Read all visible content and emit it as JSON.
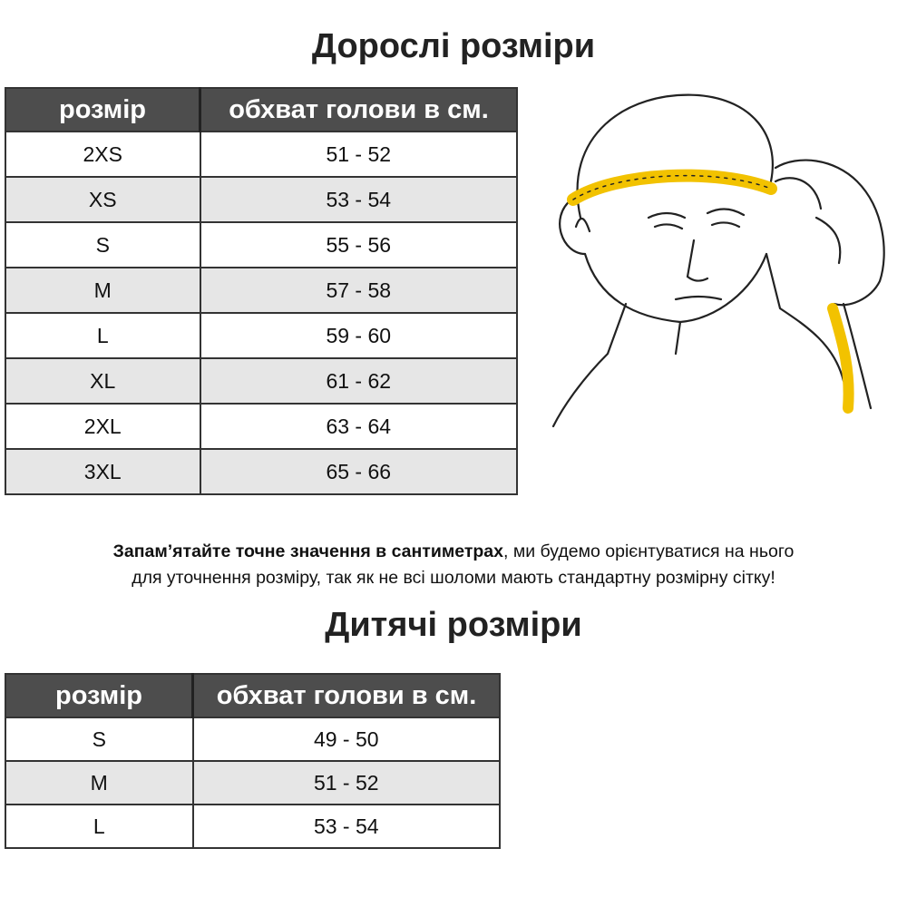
{
  "adult": {
    "title": "Дорослі розміри",
    "headers": [
      "розмір",
      "обхват голови в см."
    ],
    "rows": [
      {
        "size": "2XS",
        "range": "51 - 52"
      },
      {
        "size": "XS",
        "range": "53 - 54"
      },
      {
        "size": "S",
        "range": "55 - 56"
      },
      {
        "size": "M",
        "range": "57 - 58"
      },
      {
        "size": "L",
        "range": "59 - 60"
      },
      {
        "size": "XL",
        "range": "61 - 62"
      },
      {
        "size": "2XL",
        "range": "63 - 64"
      },
      {
        "size": "3XL",
        "range": "65 - 66"
      }
    ]
  },
  "note": {
    "bold": "Запам’ятайте точне значення в сантиметрах",
    "rest_line1": ", ми будемо орієнтуватися на нього",
    "line2": "для уточнення розміру, так як не всі шоломи мають стандартну розмірну сітку!"
  },
  "kids": {
    "title": "Дитячі розміри",
    "headers": [
      "розмір",
      "обхват голови в см."
    ],
    "rows": [
      {
        "size": "S",
        "range": "49 - 50"
      },
      {
        "size": "M",
        "range": "51 - 52"
      },
      {
        "size": "L",
        "range": "53 - 54"
      }
    ]
  },
  "colors": {
    "header_bg": "#4d4d4d",
    "stripe": "#e6e6e6",
    "tape": "#f2c200"
  }
}
